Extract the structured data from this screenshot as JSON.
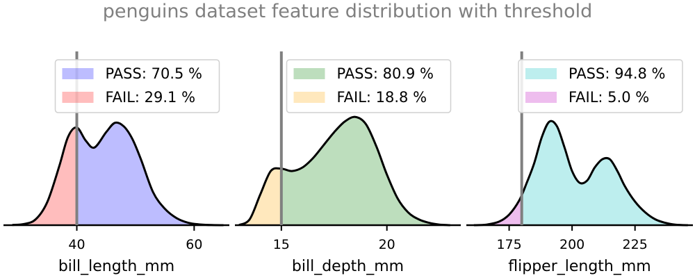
{
  "title": "penguins dataset feature distribution with threshold",
  "chart_data": [
    {
      "type": "area",
      "xlabel": "bill_length_mm",
      "xlim": [
        27.5,
        66.0
      ],
      "ticks": [
        40,
        60
      ],
      "threshold": 40,
      "grid": false,
      "legend_position": "top",
      "pass_color": "#0000ff",
      "fail_color": "#ff0000",
      "legend": [
        {
          "label": "PASS: 70.5 %",
          "role": "pass"
        },
        {
          "label": "FAIL: 29.1 %",
          "role": "fail"
        }
      ],
      "density": {
        "x": [
          29.0,
          31.0,
          33.0,
          35.0,
          37.0,
          38.5,
          40.0,
          41.5,
          43.0,
          45.0,
          46.5,
          48.0,
          49.5,
          51.0,
          53.0,
          55.0,
          57.0,
          59.0,
          61.0,
          63.0,
          65.0
        ],
        "y": [
          0.2,
          1.0,
          5.0,
          20.0,
          50.0,
          75.0,
          83.0,
          72.0,
          66.0,
          79.0,
          87.0,
          84.0,
          73.0,
          55.0,
          28.0,
          14.0,
          6.0,
          2.0,
          0.6,
          0.1,
          0.0
        ]
      }
    },
    {
      "type": "area",
      "xlabel": "bill_depth_mm",
      "xlim": [
        12.8,
        23.5
      ],
      "ticks": [
        15,
        20
      ],
      "threshold": 15,
      "grid": false,
      "legend_position": "top",
      "pass_color": "#008000",
      "fail_color": "#ffa500",
      "legend": [
        {
          "label": "PASS: 80.9 %",
          "role": "pass"
        },
        {
          "label": "FAIL: 18.8 %",
          "role": "fail"
        }
      ],
      "density": {
        "x": [
          13.0,
          13.5,
          14.0,
          14.5,
          15.0,
          15.5,
          16.0,
          16.5,
          17.0,
          17.5,
          18.0,
          18.5,
          19.0,
          19.5,
          20.0,
          20.5,
          21.0,
          21.5,
          22.0,
          22.5,
          23.0
        ],
        "y": [
          0.2,
          5.0,
          26.0,
          46.0,
          48.0,
          46.0,
          49.0,
          57.0,
          68.0,
          79.0,
          88.0,
          92.0,
          86.0,
          67.0,
          43.0,
          23.0,
          11.0,
          5.0,
          2.0,
          0.5,
          0.0
        ]
      }
    },
    {
      "type": "area",
      "xlabel": "flipper_length_mm",
      "xlim": [
        158,
        248
      ],
      "ticks": [
        175,
        200,
        225
      ],
      "threshold": 180,
      "grid": false,
      "legend_position": "top",
      "pass_color": "#00bfbf",
      "fail_color": "#bf00bf",
      "legend": [
        {
          "label": "PASS: 94.8 %",
          "role": "pass"
        },
        {
          "label": "FAIL: 5.0 %",
          "role": "fail"
        }
      ],
      "density": {
        "x": [
          161,
          166,
          171,
          175,
          179,
          182,
          185,
          188,
          191,
          194,
          197,
          200,
          203,
          206,
          209,
          212,
          215,
          218,
          221,
          225,
          229,
          233,
          237,
          241,
          246
        ],
        "y": [
          0.0,
          0.5,
          3.0,
          9.0,
          21.0,
          36.0,
          53.0,
          75.0,
          88.0,
          84.0,
          66.0,
          46.0,
          36.0,
          38.0,
          49.0,
          56.0,
          56.0,
          46.0,
          33.0,
          20.0,
          11.0,
          5.0,
          2.0,
          0.5,
          0.0
        ]
      }
    }
  ]
}
